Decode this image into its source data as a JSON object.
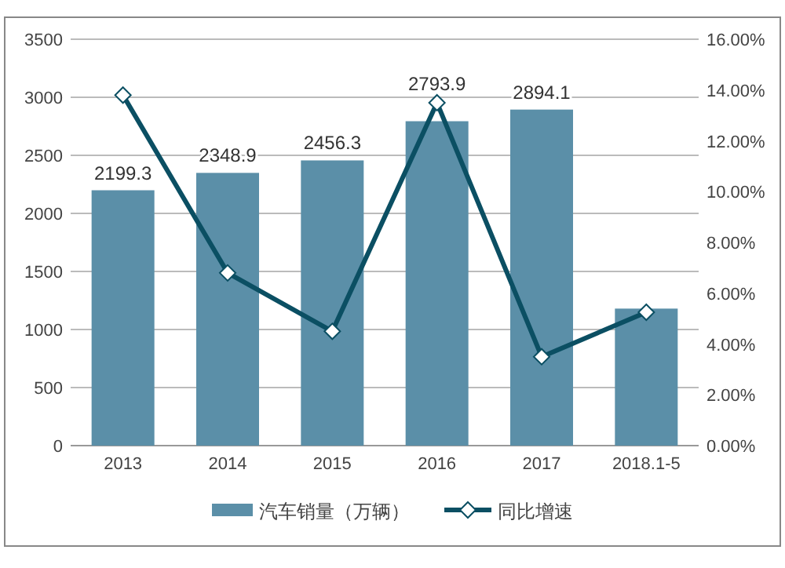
{
  "chart_data": {
    "type": "bar",
    "categories": [
      "2013",
      "2014",
      "2015",
      "2016",
      "2017",
      "2018.1-5"
    ],
    "series": [
      {
        "name": "汽车销量（万辆）",
        "color": "#5b8fa8",
        "values": [
          2199.3,
          2348.9,
          2456.3,
          2793.9,
          2894.1,
          1180
        ],
        "value_labels": [
          "2199.3",
          "2348.9",
          "2456.3",
          "2793.9",
          "2894.1",
          null
        ]
      },
      {
        "name": "同比增速",
        "type": "line",
        "axis": "y2",
        "color": "#0b4f63",
        "marker": "diamond",
        "values": [
          13.8,
          6.8,
          4.5,
          13.5,
          3.5,
          5.25
        ]
      }
    ],
    "ylim": [
      0,
      3500
    ],
    "yticks": [
      0,
      500,
      1000,
      1500,
      2000,
      2500,
      3000,
      3500
    ],
    "y2lim": [
      0,
      16
    ],
    "y2ticks": [
      {
        "value": 0,
        "label": "0.00%"
      },
      {
        "value": 2,
        "label": "2.00%"
      },
      {
        "value": 4,
        "label": "4.00%"
      },
      {
        "value": 6,
        "label": "6.00%"
      },
      {
        "value": 8,
        "label": "8.00%"
      },
      {
        "value": 10,
        "label": "10.00%"
      },
      {
        "value": 12,
        "label": "12.00%"
      },
      {
        "value": 14,
        "label": "14.00%"
      },
      {
        "value": 16,
        "label": "16.00%"
      }
    ],
    "grid": "y",
    "legend": "bottom"
  }
}
